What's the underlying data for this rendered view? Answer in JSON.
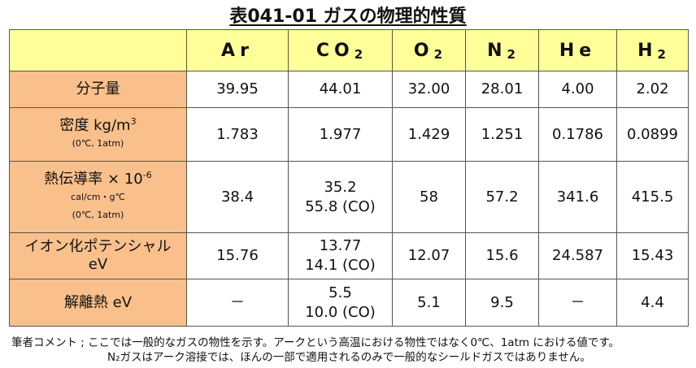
{
  "title": "表041-01 ガスの物理的性質",
  "headers": [
    {
      "main": "Ar",
      "sub": ""
    },
    {
      "main": "CO",
      "sub": "2"
    },
    {
      "main": "O",
      "sub": "2"
    },
    {
      "main": "N",
      "sub": "2"
    },
    {
      "main": "He",
      "sub": ""
    },
    {
      "main": "H",
      "sub": "2"
    }
  ],
  "rows": [
    {
      "label": "分子量",
      "values": [
        "39.95",
        "44.01",
        "32.00",
        "28.01",
        "4.00",
        "2.02"
      ]
    },
    {
      "label": "密度 kg/m",
      "label_sup": "3",
      "label_note": "(0℃, 1atm)",
      "values": [
        "1.783",
        "1.977",
        "1.429",
        "1.251",
        "0.1786",
        "0.0899"
      ]
    },
    {
      "label": "熱伝導率 × 10",
      "label_sup": "-6",
      "label_unit": "cal/cm・g℃",
      "label_note": "(0℃, 1atm)",
      "values": [
        "38.4",
        "35.2",
        "58",
        "57.2",
        "341.6",
        "415.5"
      ],
      "co2_extra": "55.8 (CO)"
    },
    {
      "label": "イオン化ポテンシャル",
      "label_line2": "eV",
      "values": [
        "15.76",
        "13.77",
        "12.07",
        "15.6",
        "24.587",
        "15.43"
      ],
      "co2_extra": "14.1 (CO)"
    },
    {
      "label": "解離熱 eV",
      "values": [
        "－",
        "5.5",
        "5.1",
        "9.5",
        "－",
        "4.4"
      ],
      "co2_extra": "10.0 (CO)"
    }
  ],
  "notes": {
    "line1": "筆者コメント ; ここでは一般的なガスの物性を示す。アークという高温における物性ではなく0℃、1atm における値です。",
    "line2": "N₂ガスはアーク溶接では、ほんの一部で適用されるのみで一般的なシールドガスではありません。"
  }
}
